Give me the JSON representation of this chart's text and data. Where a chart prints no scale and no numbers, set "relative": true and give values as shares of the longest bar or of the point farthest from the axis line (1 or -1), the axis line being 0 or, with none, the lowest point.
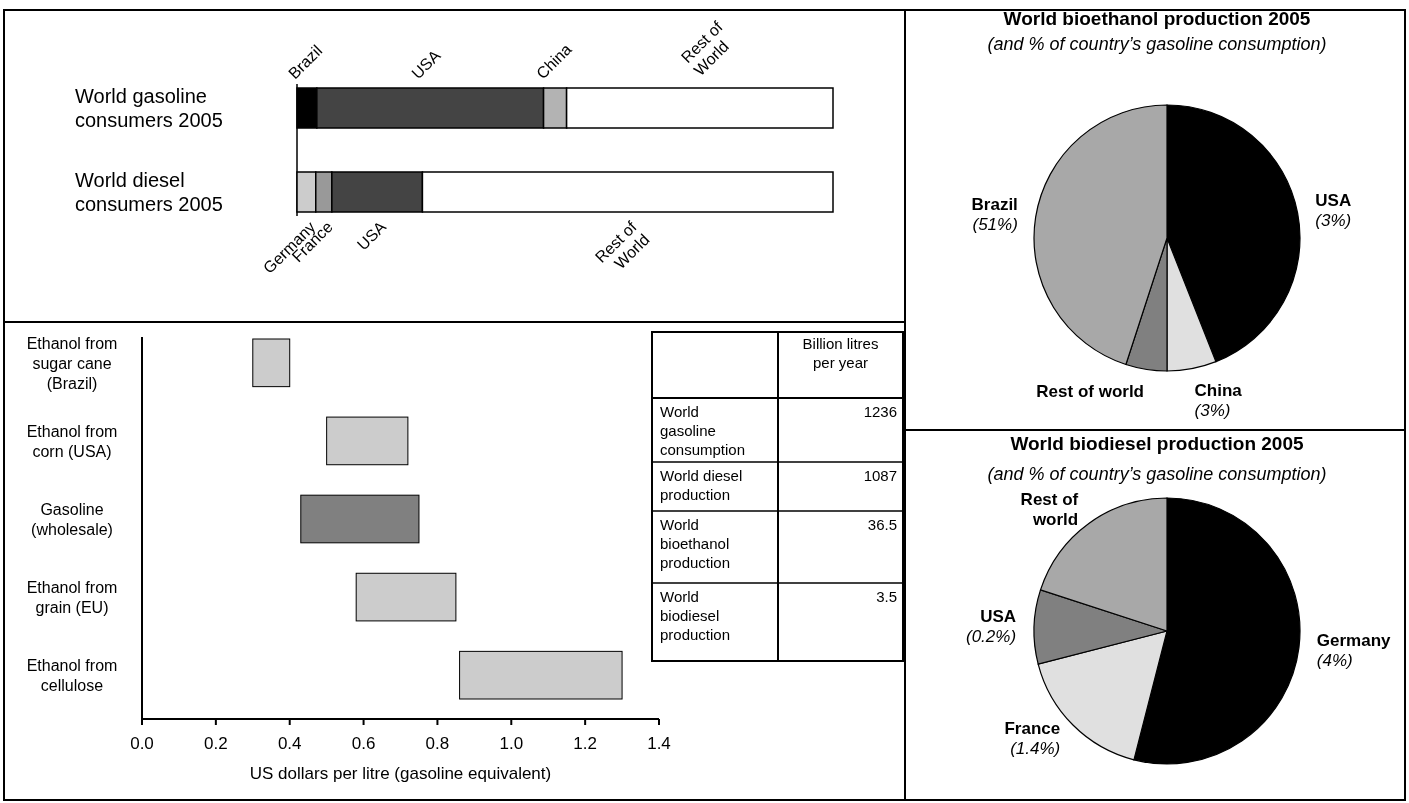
{
  "chart_data": [
    {
      "type": "bar",
      "orientation": "horizontal",
      "stacked": true,
      "relative": true,
      "categories": [
        "World gasoline consumers 2005",
        "World diesel consumers 2005"
      ],
      "series": [
        {
          "name": "Brazil",
          "color": "#000000",
          "values": [
            0.037,
            null
          ]
        },
        {
          "name": "USA",
          "color": "#444444",
          "values": [
            0.423,
            null
          ]
        },
        {
          "name": "China",
          "color": "#b3b3b3",
          "values": [
            0.043,
            null
          ]
        },
        {
          "name": "Rest of World",
          "color": "#ffffff",
          "values": [
            0.497,
            null
          ]
        },
        {
          "name": "Germany",
          "color": "#cccccc",
          "values": [
            null,
            0.035
          ]
        },
        {
          "name": "France",
          "color": "#999999",
          "values": [
            null,
            0.03
          ]
        },
        {
          "name": "USA",
          "color": "#444444",
          "values": [
            null,
            0.169
          ]
        },
        {
          "name": "Rest of World",
          "color": "#ffffff",
          "values": [
            null,
            0.766
          ]
        }
      ]
    },
    {
      "type": "bar",
      "orientation": "horizontal",
      "categories": [
        "Ethanol from sugar cane (Brazil)",
        "Ethanol from corn (USA)",
        "Gasoline (wholesale)",
        "Ethanol from grain (EU)",
        "Ethanol from cellulose"
      ],
      "base": [
        0.3,
        0.5,
        0.43,
        0.58,
        0.86
      ],
      "values": [
        0.1,
        0.22,
        0.32,
        0.27,
        0.44
      ],
      "colors": [
        "#cccccc",
        "#cccccc",
        "#808080",
        "#cccccc",
        "#cccccc"
      ],
      "xlim": [
        0,
        1.4
      ],
      "xticks": [
        {
          "value": 0,
          "label": "0.0"
        },
        0.2,
        0.4,
        0.6,
        0.8,
        {
          "value": 1,
          "label": "1.0"
        },
        1.2,
        1.4
      ],
      "xlabel": "US dollars per litre (gasoline equivalent)"
    },
    {
      "type": "other",
      "categories": [
        "World gasoline consumption",
        "World diesel production",
        "World bioethanol production",
        "World biodiesel production"
      ],
      "values": [
        1236,
        1087,
        36.5,
        3.5
      ],
      "xlabel": "Billion litres per year",
      "data_labels": true
    },
    {
      "type": "pie",
      "title": "World bioethanol production 2005",
      "subtitle": "(and % of country’s gasoline consumption)",
      "categories": [
        "USA",
        "China",
        "Rest of world",
        "Brazil"
      ],
      "values": [
        44,
        6,
        5,
        45
      ],
      "colors": [
        "#000000",
        "#e0e0e0",
        "#808080",
        "#a8a8a8"
      ],
      "annotations": [
        {
          "text": "(3%)",
          "x": "USA"
        },
        {
          "text": "(3%)",
          "x": "China"
        },
        {
          "text": "(51%)",
          "x": "Brazil"
        }
      ]
    },
    {
      "type": "pie",
      "title": "World biodiesel production 2005",
      "subtitle": "(and % of country’s gasoline consumption)",
      "categories": [
        "Germany",
        "France",
        "USA",
        "Rest of world"
      ],
      "values": [
        54,
        17,
        9,
        20
      ],
      "colors": [
        "#000000",
        "#e0e0e0",
        "#808080",
        "#a8a8a8"
      ],
      "annotations": [
        {
          "text": "(4%)",
          "x": "Germany"
        },
        {
          "text": "(1.4%)",
          "x": "France"
        },
        {
          "text": "(0.2%)",
          "x": "USA"
        }
      ]
    }
  ]
}
